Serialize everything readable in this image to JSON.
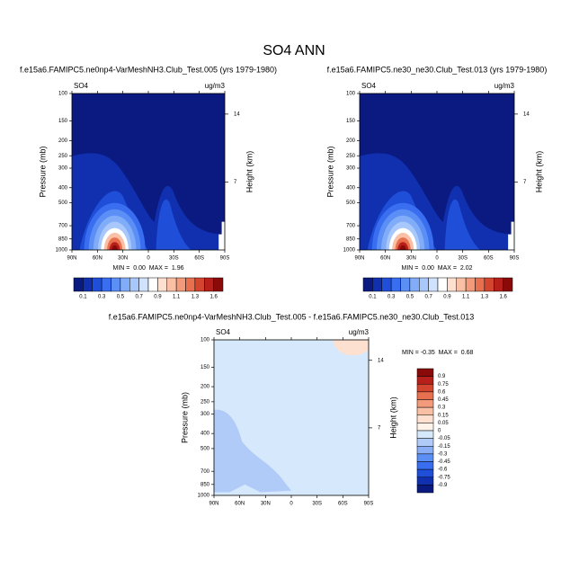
{
  "title": "SO4 ANN",
  "chart_data": [
    {
      "type": "contour",
      "subtitle": "f.e15a6.FAMIPC5.ne0np4-VarMeshNH3.Club_Test.005 (yrs 1979-1980)",
      "left_label": "SO4",
      "right_label": "ug/m3",
      "ylabel": "Pressure (mb)",
      "y2label": "Height (km)",
      "log_y": true,
      "ylim": [
        1000,
        100
      ],
      "yticks": [
        100,
        150,
        200,
        250,
        300,
        400,
        500,
        700,
        850,
        1000
      ],
      "y2lim": [
        0,
        16.12
      ],
      "y2ticks": [
        7,
        14
      ],
      "xlim": [
        90,
        -90
      ],
      "xticks": [
        {
          "value": 90,
          "label": "90N"
        },
        {
          "value": 60,
          "label": "60N"
        },
        {
          "value": 30,
          "label": "30N"
        },
        0,
        {
          "value": -30,
          "label": "30S"
        },
        {
          "value": -60,
          "label": "60S"
        },
        {
          "value": -90,
          "label": "90S"
        }
      ],
      "min_max": "MIN =  0.00  MAX =  1.96",
      "colorbar": {
        "orientation": "horizontal",
        "labels": [
          0.1,
          0.3,
          0.5,
          0.7,
          0.9,
          1.1,
          1.3,
          1.6
        ],
        "colors": [
          "#0b1a80",
          "#1030b0",
          "#1f4fd8",
          "#3a6ef0",
          "#5b8ff5",
          "#80acf8",
          "#a8c8fb",
          "#d0e2fd",
          "#ffffff",
          "#fde0d0",
          "#f9c0a5",
          "#f29a7a",
          "#e8704f",
          "#d44530",
          "#b61f1a",
          "#8a0a0a"
        ]
      }
    },
    {
      "type": "contour",
      "subtitle": "f.e15a6.FAMIPC5.ne30_ne30.Club_Test.013 (yrs 1979-1980)",
      "left_label": "SO4",
      "right_label": "ug/m3",
      "ylabel": "Pressure (mb)",
      "y2label": "Height (km)",
      "log_y": true,
      "ylim": [
        1000,
        100
      ],
      "yticks": [
        100,
        150,
        200,
        250,
        300,
        400,
        500,
        700,
        850,
        1000
      ],
      "y2lim": [
        0,
        16.12
      ],
      "y2ticks": [
        7,
        14
      ],
      "xlim": [
        90,
        -90
      ],
      "xticks": [
        {
          "value": 90,
          "label": "90N"
        },
        {
          "value": 60,
          "label": "60N"
        },
        {
          "value": 30,
          "label": "30N"
        },
        0,
        {
          "value": -30,
          "label": "30S"
        },
        {
          "value": -60,
          "label": "60S"
        },
        {
          "value": -90,
          "label": "90S"
        }
      ],
      "min_max": "MIN =  0.00  MAX =  2.02",
      "colorbar": {
        "orientation": "horizontal",
        "labels": [
          0.1,
          0.3,
          0.5,
          0.7,
          0.9,
          1.1,
          1.3,
          1.6
        ],
        "colors": [
          "#0b1a80",
          "#1030b0",
          "#1f4fd8",
          "#3a6ef0",
          "#5b8ff5",
          "#80acf8",
          "#a8c8fb",
          "#d0e2fd",
          "#ffffff",
          "#fde0d0",
          "#f9c0a5",
          "#f29a7a",
          "#e8704f",
          "#d44530",
          "#b61f1a",
          "#8a0a0a"
        ]
      }
    },
    {
      "type": "contour",
      "subtitle": "f.e15a6.FAMIPC5.ne0np4-VarMeshNH3.Club_Test.005 - f.e15a6.FAMIPC5.ne30_ne30.Club_Test.013",
      "left_label": "SO4",
      "right_label": "ug/m3",
      "ylabel": "Pressure (mb)",
      "y2label": "Height (km)",
      "log_y": true,
      "ylim": [
        1000,
        100
      ],
      "yticks": [
        100,
        150,
        200,
        250,
        300,
        400,
        500,
        700,
        850,
        1000
      ],
      "y2lim": [
        0,
        16.12
      ],
      "y2ticks": [
        7,
        14
      ],
      "xlim": [
        90,
        -90
      ],
      "xticks": [
        {
          "value": 90,
          "label": "90N"
        },
        {
          "value": 60,
          "label": "60N"
        },
        {
          "value": 30,
          "label": "30N"
        },
        0,
        {
          "value": -30,
          "label": "30S"
        },
        {
          "value": -60,
          "label": "60S"
        },
        {
          "value": -90,
          "label": "90S"
        }
      ],
      "min_max": "MIN = -0.35  MAX =  0.68",
      "colorbar": {
        "orientation": "vertical",
        "labels": [
          0.9,
          0.75,
          0.6,
          0.45,
          0.3,
          0.15,
          0.05,
          0,
          -0.05,
          -0.15,
          -0.3,
          -0.45,
          -0.6,
          -0.75,
          -0.9
        ],
        "colors": [
          "#8a0a0a",
          "#b61f1a",
          "#d44530",
          "#e8704f",
          "#f29a7a",
          "#f9c0a5",
          "#fde0d0",
          "#fff3ea",
          "#d6e8fb",
          "#b0cbf8",
          "#8aaef5",
          "#5b8ff5",
          "#3a6ef0",
          "#1f4fd8",
          "#1030b0",
          "#0b1a80"
        ]
      }
    }
  ]
}
